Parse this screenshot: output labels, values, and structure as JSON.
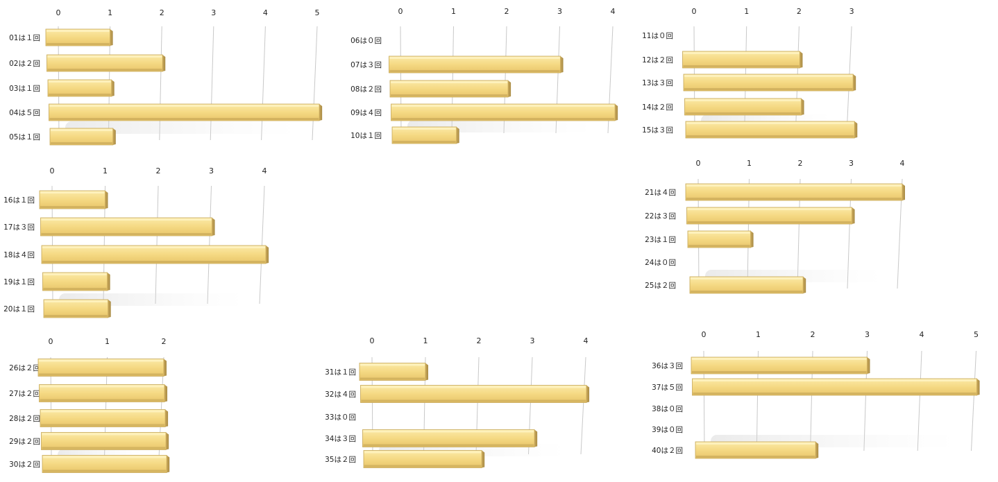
{
  "chart_data": [
    {
      "type": "bar",
      "orientation": "horizontal",
      "style": "3d",
      "categories": [
        "01は１回",
        "02は２回",
        "03は１回",
        "04は５回",
        "05は１回"
      ],
      "values": [
        1,
        2,
        1,
        5,
        1
      ],
      "xlim": [
        0,
        5
      ],
      "ticks": [
        0,
        1,
        2,
        3,
        4,
        5
      ],
      "title": "",
      "xlabel": "",
      "ylabel": "",
      "grid": true,
      "bar_color": "#f6dc8a"
    },
    {
      "type": "bar",
      "orientation": "horizontal",
      "style": "3d",
      "categories": [
        "06は０回",
        "07は３回",
        "08は２回",
        "09は４回",
        "10は１回"
      ],
      "values": [
        0,
        3,
        2,
        4,
        1
      ],
      "xlim": [
        0,
        4
      ],
      "ticks": [
        0,
        1,
        2,
        3,
        4
      ],
      "title": "",
      "xlabel": "",
      "ylabel": "",
      "grid": true,
      "bar_color": "#f6dc8a"
    },
    {
      "type": "bar",
      "orientation": "horizontal",
      "style": "3d",
      "categories": [
        "11は０回",
        "12は２回",
        "13は３回",
        "14は２回",
        "15は３回"
      ],
      "values": [
        0,
        2,
        3,
        2,
        3
      ],
      "xlim": [
        0,
        3
      ],
      "ticks": [
        0,
        1,
        2,
        3
      ],
      "title": "",
      "xlabel": "",
      "ylabel": "",
      "grid": true,
      "bar_color": "#f6dc8a"
    },
    {
      "type": "bar",
      "orientation": "horizontal",
      "style": "3d",
      "categories": [
        "16は１回",
        "17は３回",
        "18は４回",
        "19は１回",
        "20は１回"
      ],
      "values": [
        1,
        3,
        4,
        1,
        1
      ],
      "xlim": [
        0,
        4
      ],
      "ticks": [
        0,
        1,
        2,
        3,
        4
      ],
      "title": "",
      "xlabel": "",
      "ylabel": "",
      "grid": true,
      "bar_color": "#f6dc8a"
    },
    {
      "type": "bar",
      "orientation": "horizontal",
      "style": "3d",
      "categories": [
        "21は４回",
        "22は３回",
        "23は１回",
        "24は０回",
        "25は２回"
      ],
      "values": [
        4,
        3,
        1,
        0,
        2
      ],
      "xlim": [
        0,
        4
      ],
      "ticks": [
        0,
        1,
        2,
        3,
        4
      ],
      "title": "",
      "xlabel": "",
      "ylabel": "",
      "grid": true,
      "bar_color": "#f6dc8a"
    },
    {
      "type": "bar",
      "orientation": "horizontal",
      "style": "3d",
      "categories": [
        "26は２回",
        "27は２回",
        "28は２回",
        "29は２回",
        "30は２回"
      ],
      "values": [
        2,
        2,
        2,
        2,
        2
      ],
      "xlim": [
        0,
        2
      ],
      "ticks": [
        0,
        1,
        2
      ],
      "title": "",
      "xlabel": "",
      "ylabel": "",
      "grid": true,
      "bar_color": "#f6dc8a"
    },
    {
      "type": "bar",
      "orientation": "horizontal",
      "style": "3d",
      "categories": [
        "31は１回",
        "32は４回",
        "33は０回",
        "34は３回",
        "35は２回"
      ],
      "values": [
        1,
        4,
        0,
        3,
        2
      ],
      "xlim": [
        0,
        4
      ],
      "ticks": [
        0,
        1,
        2,
        3,
        4
      ],
      "title": "",
      "xlabel": "",
      "ylabel": "",
      "grid": true,
      "bar_color": "#f6dc8a"
    },
    {
      "type": "bar",
      "orientation": "horizontal",
      "style": "3d",
      "categories": [
        "36は３回",
        "37は５回",
        "38は０回",
        "39は０回",
        "40は２回"
      ],
      "values": [
        3,
        5,
        0,
        0,
        2
      ],
      "xlim": [
        0,
        5
      ],
      "ticks": [
        0,
        1,
        2,
        3,
        4,
        5
      ],
      "title": "",
      "xlabel": "",
      "ylabel": "",
      "grid": true,
      "bar_color": "#f6dc8a"
    }
  ]
}
